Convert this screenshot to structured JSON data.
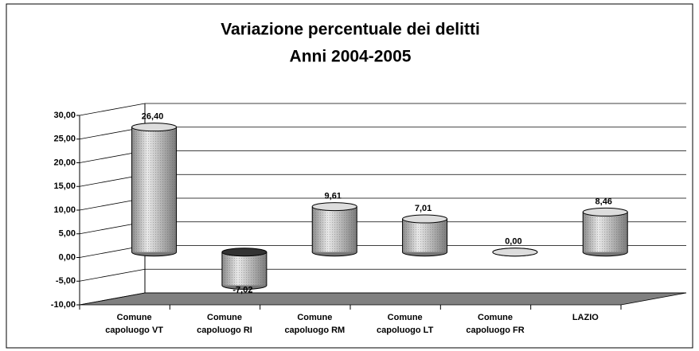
{
  "chart_data": {
    "type": "bar3d",
    "title": "Variazione percentuale dei delitti",
    "subtitle": "Anni  2004-2005",
    "categories": [
      "Comune capoluogo VT",
      "Comune capoluogo RI",
      "Comune capoluogo RM",
      "Comune capoluogo LT",
      "Comune capoluogo FR",
      "LAZIO"
    ],
    "values": [
      26.4,
      -7.02,
      9.61,
      7.01,
      0.0,
      8.46
    ],
    "value_labels": [
      "26,40",
      "-7,02",
      "9,61",
      "7,01",
      "0,00",
      "8,46"
    ],
    "color": "#c0c0c0",
    "floor_color": "#808080",
    "ylim": [
      -10,
      30
    ],
    "yticks": [
      {
        "value": -10,
        "label": "-10,00"
      },
      {
        "value": -5,
        "label": "-5,00"
      },
      {
        "value": 0,
        "label": "0,00"
      },
      {
        "value": 5,
        "label": "5,00"
      },
      {
        "value": 10,
        "label": "10,00"
      },
      {
        "value": 15,
        "label": "15,00"
      },
      {
        "value": 20,
        "label": "20,00"
      },
      {
        "value": 25,
        "label": "25,00"
      },
      {
        "value": 30,
        "label": "30,00"
      }
    ],
    "grid": true
  }
}
